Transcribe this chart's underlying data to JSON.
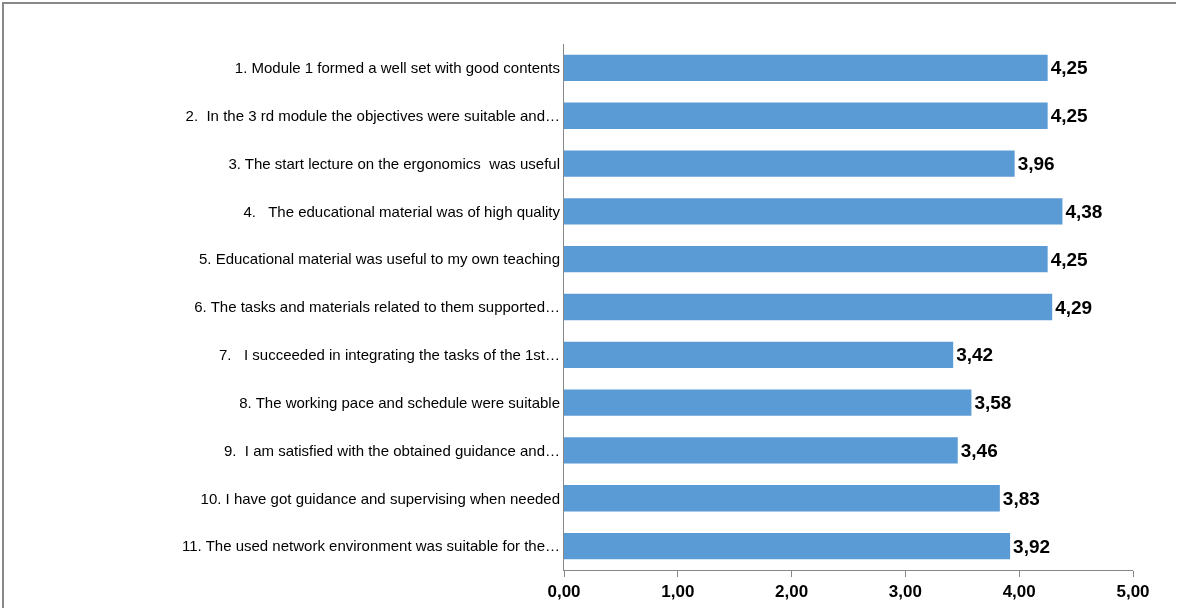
{
  "chart_data": {
    "type": "bar",
    "orientation": "horizontal",
    "categories": [
      "1. Module 1 formed a well set with good contents",
      "2.  In the 3 rd module the objectives were suitable and…",
      "3. The start lecture on the ergonomics  was useful",
      "4.   The educational material was of high quality",
      "5. Educational material was useful to my own teaching",
      "6. The tasks and materials related to them supported…",
      "7.   I succeeded in integrating the tasks of the 1st…",
      "8. The working pace and schedule were suitable",
      "9.  I am satisfied with the obtained guidance and…",
      "10. I have got guidance and supervising when needed",
      "11. The used network environment was suitable for the…"
    ],
    "values": [
      4.25,
      4.25,
      3.96,
      4.38,
      4.25,
      4.29,
      3.42,
      3.58,
      3.46,
      3.83,
      3.92
    ],
    "value_labels": [
      "4,25",
      "4,25",
      "3,96",
      "4,38",
      "4,25",
      "4,29",
      "3,42",
      "3,58",
      "3,46",
      "3,83",
      "3,92"
    ],
    "color": "#5b9bd5",
    "xlim": [
      0,
      5
    ],
    "xticks": [
      {
        "value": 0,
        "label": "0,00"
      },
      {
        "value": 1,
        "label": "1,00"
      },
      {
        "value": 2,
        "label": "2,00"
      },
      {
        "value": 3,
        "label": "3,00"
      },
      {
        "value": 4,
        "label": "4,00"
      },
      {
        "value": 5,
        "label": "5,00"
      }
    ],
    "grid": false,
    "legend": false
  }
}
